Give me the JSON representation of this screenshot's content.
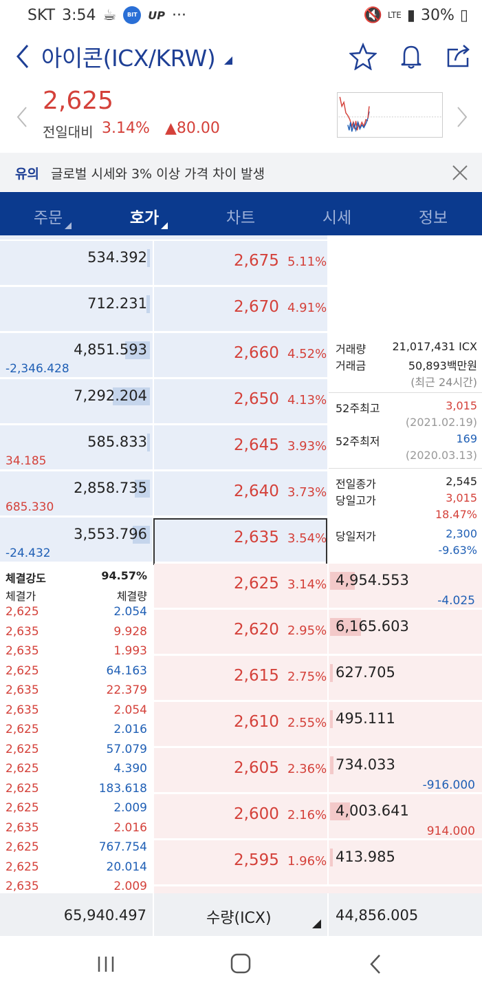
{
  "status": {
    "carrier": "SKT",
    "time": "3:54",
    "up": "UP",
    "dots": "···",
    "battery": "30%"
  },
  "header": {
    "title": "아이콘(ICX/KRW)"
  },
  "price": {
    "current": "2,625",
    "prev_label": "전일대비",
    "pct": "3.14%",
    "diff": "▲80.00"
  },
  "notice": {
    "tag": "유의",
    "text": "글로벌 시세와 3% 이상 가격 차이 발생"
  },
  "tabs": [
    {
      "label": "주문"
    },
    {
      "label": "호가"
    },
    {
      "label": "차트"
    },
    {
      "label": "시세"
    },
    {
      "label": "정보"
    }
  ],
  "asks": [
    {
      "vol": "534.392",
      "price": "2,675",
      "pct": "5.11%",
      "chg": "",
      "bar": 0.02
    },
    {
      "vol": "712.231",
      "price": "2,670",
      "pct": "4.91%",
      "chg": "",
      "bar": 0.03
    },
    {
      "vol": "4,851.593",
      "price": "2,660",
      "pct": "4.52%",
      "chg": "-2,346.428",
      "bar": 0.2
    },
    {
      "vol": "7,292.204",
      "price": "2,650",
      "pct": "4.13%",
      "chg": "",
      "bar": 0.3
    },
    {
      "vol": "585.833",
      "price": "2,645",
      "pct": "3.93%",
      "chg": "34.185",
      "bar": 0.02
    },
    {
      "vol": "2,858.735",
      "price": "2,640",
      "pct": "3.73%",
      "chg": "685.330",
      "bar": 0.12
    },
    {
      "vol": "3,553.796",
      "price": "2,635",
      "pct": "3.54%",
      "chg": "-24.432",
      "bar": 0.14
    }
  ],
  "bids": [
    {
      "vol": "4,954.553",
      "price": "2,625",
      "pct": "3.14%",
      "chg": "-4.025",
      "bar": 0.2
    },
    {
      "vol": "6,165.603",
      "price": "2,620",
      "pct": "2.95%",
      "chg": "",
      "bar": 0.25
    },
    {
      "vol": "627.705",
      "price": "2,615",
      "pct": "2.75%",
      "chg": "",
      "bar": 0.02
    },
    {
      "vol": "495.111",
      "price": "2,610",
      "pct": "2.55%",
      "chg": "",
      "bar": 0.02
    },
    {
      "vol": "734.033",
      "price": "2,605",
      "pct": "2.36%",
      "chg": "-916.000",
      "bar": 0.03
    },
    {
      "vol": "4,003.641",
      "price": "2,600",
      "pct": "2.16%",
      "chg": "914.000",
      "bar": 0.16
    },
    {
      "vol": "413.985",
      "price": "2,595",
      "pct": "1.96%",
      "chg": "",
      "bar": 0.02
    }
  ],
  "info": {
    "vol_label": "거래량",
    "vol": "21,017,431 ICX",
    "amt_label": "거래금",
    "amt": "50,893백만원",
    "period": "(최근 24시간)",
    "hi52_label": "52주최고",
    "hi52": "3,015",
    "hi52_date": "(2021.02.19)",
    "lo52_label": "52주최저",
    "lo52": "169",
    "lo52_date": "(2020.03.13)",
    "prev_close_label": "전일종가",
    "prev_close": "2,545",
    "day_high_label": "당일고가",
    "day_high": "3,015",
    "day_high_pct": "18.47%",
    "day_low_label": "당일저가",
    "day_low": "2,300",
    "day_low_pct": "-9.63%"
  },
  "trades": {
    "strength_label": "체결강도",
    "strength": "94.57%",
    "price_label": "체결가",
    "qty_label": "체결량",
    "rows": [
      {
        "p": "2,625",
        "q": "2.054",
        "side": "buy"
      },
      {
        "p": "2,635",
        "q": "9.928",
        "side": "sell"
      },
      {
        "p": "2,635",
        "q": "1.993",
        "side": "sell"
      },
      {
        "p": "2,625",
        "q": "64.163",
        "side": "buy"
      },
      {
        "p": "2,635",
        "q": "22.379",
        "side": "sell"
      },
      {
        "p": "2,635",
        "q": "2.054",
        "side": "sell"
      },
      {
        "p": "2,625",
        "q": "2.016",
        "side": "buy"
      },
      {
        "p": "2,625",
        "q": "57.079",
        "side": "buy"
      },
      {
        "p": "2,625",
        "q": "4.390",
        "side": "buy"
      },
      {
        "p": "2,625",
        "q": "183.618",
        "side": "buy"
      },
      {
        "p": "2,625",
        "q": "2.009",
        "side": "buy"
      },
      {
        "p": "2,635",
        "q": "2.016",
        "side": "sell"
      },
      {
        "p": "2,625",
        "q": "767.754",
        "side": "buy"
      },
      {
        "p": "2,625",
        "q": "20.014",
        "side": "buy"
      },
      {
        "p": "2,635",
        "q": "2.009",
        "side": "sell"
      }
    ]
  },
  "footer": {
    "ask_total": "65,940.497",
    "unit": "수량(ICX)",
    "bid_total": "44,856.005"
  },
  "colors": {
    "up": "#d4413a",
    "down": "#1f5fb5",
    "brand": "#0b3a8e"
  }
}
